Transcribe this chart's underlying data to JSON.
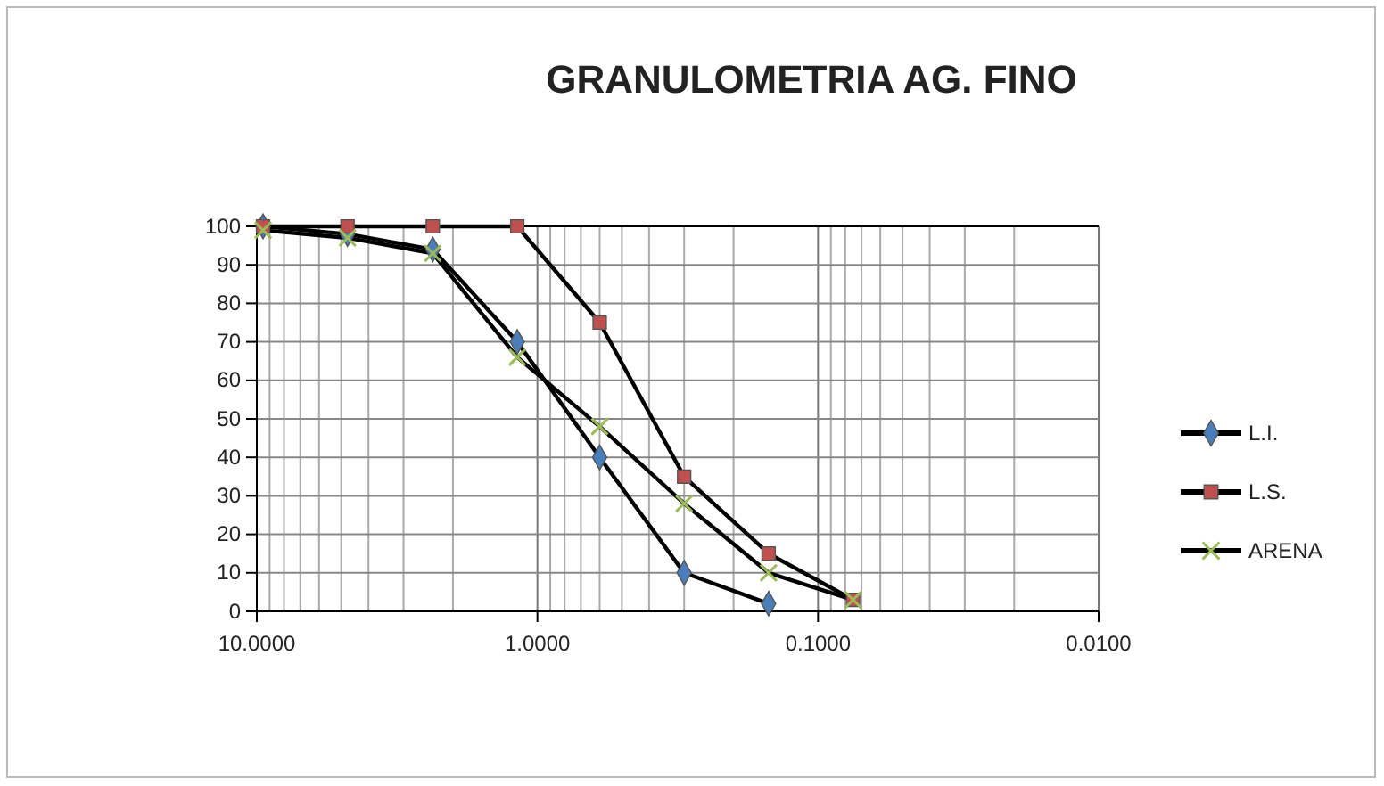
{
  "chart_data": {
    "type": "line",
    "title": "GRANULOMETRIA AG. FINO",
    "x": [
      9.5,
      4.75,
      2.36,
      1.18,
      0.6,
      0.3,
      0.15,
      0.075
    ],
    "series": [
      {
        "name": "L.I.",
        "color": "#4a7ebb",
        "marker": "diamond",
        "values": [
          100,
          98,
          94,
          70,
          40,
          10,
          2,
          null
        ]
      },
      {
        "name": "L.S.",
        "color": "#c0504d",
        "marker": "square",
        "values": [
          100,
          100,
          100,
          100,
          75,
          35,
          15,
          3
        ]
      },
      {
        "name": "ARENA",
        "color": "#9bbb59",
        "marker": "cross",
        "values": [
          99,
          97,
          93,
          66,
          48,
          28,
          10,
          3
        ]
      }
    ],
    "log": "x",
    "xlim": [
      10,
      0.01
    ],
    "xticks": [
      {
        "value": 10,
        "label": "10.0000"
      },
      {
        "value": 1,
        "label": "1.0000"
      },
      {
        "value": 0.1,
        "label": "0.1000"
      },
      {
        "value": 0.01,
        "label": "0.0100"
      }
    ],
    "ylim": [
      0,
      100
    ],
    "yticks": [
      0,
      10,
      20,
      30,
      40,
      50,
      60,
      70,
      80,
      90,
      100
    ],
    "grid": true,
    "legend": "right",
    "line_style": "solid"
  }
}
